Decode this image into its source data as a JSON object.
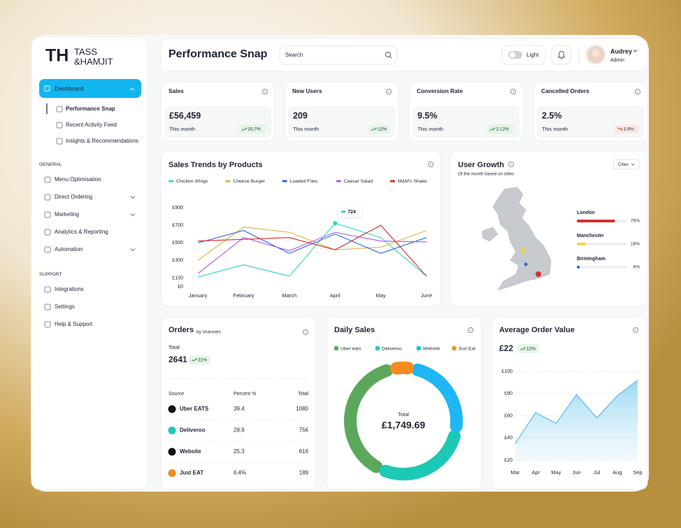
{
  "brand": {
    "mark": "TH",
    "line1": "TASS",
    "line2": "&HAMJIT"
  },
  "sidebar": {
    "active": "Dashboard",
    "sub_items": [
      "Performance Snap",
      "Recent Activity Feed",
      "Insights & Recommendations"
    ],
    "sections": [
      {
        "title": "GENERAL",
        "items": [
          {
            "label": "Menu Optimisation",
            "expandable": false
          },
          {
            "label": "Direct Ordering",
            "expandable": true
          },
          {
            "label": "Marketing",
            "expandable": true
          },
          {
            "label": "Analytics & Reporting",
            "expandable": false
          },
          {
            "label": "Automation",
            "expandable": true
          }
        ]
      },
      {
        "title": "SUPPORT",
        "items": [
          {
            "label": "Integrations",
            "expandable": false
          },
          {
            "label": "Settings",
            "expandable": false
          },
          {
            "label": "Help & Support",
            "expandable": false
          }
        ]
      }
    ]
  },
  "header": {
    "title": "Performance Snap",
    "search_placeholder": "Search",
    "theme": "Light",
    "user_name": "Audrey",
    "user_role": "Admin"
  },
  "kpis": [
    {
      "title": "Sales",
      "value": "£56,459",
      "period": "This month",
      "change": "20.7%",
      "trend": "up"
    },
    {
      "title": "New Users",
      "value": "209",
      "period": "This month",
      "change": "12%",
      "trend": "up"
    },
    {
      "title": "Conversion Rate",
      "value": "9.5%",
      "period": "This month",
      "change": "2.12%",
      "trend": "up"
    },
    {
      "title": "Cancelled Orders",
      "value": "2.5%",
      "period": "This month",
      "change": "3.8%",
      "trend": "down"
    }
  ],
  "orders": {
    "title": "Orders",
    "subtitle": "by channels",
    "total_label": "Total",
    "total": "2641",
    "change": "21%",
    "columns": [
      "Source",
      "Percent %",
      "Total"
    ],
    "rows": [
      [
        "Uber EATS",
        "39.4",
        "1080"
      ],
      [
        "Deliveroo",
        "28.9",
        "756"
      ],
      [
        "Website",
        "25.3",
        "616"
      ],
      [
        "Just EAT",
        "6.4%",
        "189"
      ]
    ]
  },
  "chart_data": [
    {
      "type": "line",
      "title": "Sales Trends by Products",
      "categories": [
        "January",
        "February",
        "March",
        "April",
        "May",
        "June"
      ],
      "series": [
        {
          "name": "Chicken Wings",
          "color": "#2dd4bf",
          "values": [
            110,
            250,
            120,
            724,
            560,
            120
          ]
        },
        {
          "name": "Cheese Burger",
          "color": "#e0b040",
          "values": [
            300,
            680,
            620,
            420,
            450,
            640
          ]
        },
        {
          "name": "Loaded Fries",
          "color": "#2563eb",
          "values": [
            500,
            640,
            380,
            600,
            380,
            560
          ]
        },
        {
          "name": "Caesar Salad",
          "color": "#a855f7",
          "values": [
            150,
            560,
            410,
            620,
            520,
            510
          ]
        },
        {
          "name": "M&M's Shake",
          "color": "#dc2626",
          "values": [
            520,
            540,
            560,
            420,
            700,
            120
          ]
        }
      ],
      "ylim": [
        0,
        900
      ],
      "yticks": [
        {
          "value": 0,
          "label": "£0"
        },
        {
          "value": 100,
          "label": "£100"
        },
        {
          "value": 300,
          "label": "£300"
        },
        {
          "value": 500,
          "label": "£500"
        },
        {
          "value": 700,
          "label": "£700"
        },
        {
          "value": 900,
          "label": "£900"
        }
      ],
      "grid": false
    },
    {
      "type": "hbar",
      "title": "User Growth",
      "subtitle": "Of the month based on cities",
      "filter": "Cities",
      "categories": [
        "London",
        "Manchester",
        "Birmingham"
      ],
      "values": [
        76,
        18,
        6
      ],
      "value_labels": [
        "76%",
        "18%",
        "6%"
      ],
      "colors": [
        "#d32f2f",
        "#f2d53c",
        "#2f6bd8"
      ],
      "xlim": [
        0,
        100
      ]
    },
    {
      "type": "donut",
      "title": "Daily Sales",
      "center_label": "Total",
      "center_value": "£1,749.69",
      "categories": [
        "Uber eats",
        "Deliveroo",
        "Website",
        "Just Eat"
      ],
      "values": [
        39.4,
        28.9,
        25.3,
        6.4
      ],
      "colors": [
        "#5ba85c",
        "#1cc9b5",
        "#1fb6f5",
        "#f58a1f"
      ]
    },
    {
      "type": "area",
      "title": "Average Order Value",
      "value": "£22",
      "change": "12%",
      "categories": [
        "Mar",
        "Apr",
        "May",
        "Jun",
        "Jul",
        "Aug",
        "Sep"
      ],
      "values": [
        35,
        63,
        53,
        79,
        58,
        78,
        92
      ],
      "color": "#5ab9e6",
      "ylim": [
        20,
        100
      ],
      "yticks": [
        {
          "value": 20,
          "label": "£20"
        },
        {
          "value": 40,
          "label": "£40"
        },
        {
          "value": 60,
          "label": "£60"
        },
        {
          "value": 80,
          "label": "£80"
        },
        {
          "value": 100,
          "label": "£100"
        }
      ],
      "grid": true
    }
  ]
}
